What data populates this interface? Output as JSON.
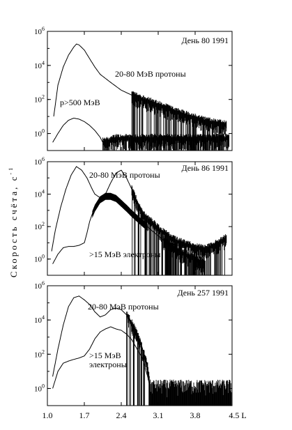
{
  "chart_data": [
    {
      "type": "line",
      "annotation": "День 80  1991",
      "xlim": [
        1.0,
        4.5
      ],
      "ylog": true,
      "ylim": [
        0.1,
        1000000
      ],
      "y_ticks": [
        {
          "value": 1,
          "base": "10",
          "exp": "0"
        },
        {
          "value": 100,
          "base": "10",
          "exp": "2"
        },
        {
          "value": 10000,
          "base": "10",
          "exp": "4"
        },
        {
          "value": 1000000,
          "base": "10",
          "exp": "6"
        }
      ],
      "series": [
        {
          "name": "20-80 МэВ протоны",
          "x": [
            1.12,
            1.2,
            1.3,
            1.4,
            1.5,
            1.55,
            1.6,
            1.7,
            1.8,
            1.9,
            2.0,
            2.2,
            2.4,
            2.6,
            2.8,
            3.0,
            3.2,
            3.4,
            3.6,
            3.8,
            4.0,
            4.2,
            4.4
          ],
          "y": [
            10,
            700,
            8000,
            40000,
            120000,
            180000,
            160000,
            80000,
            25000,
            8000,
            3000,
            1000,
            350,
            180,
            100,
            60,
            35,
            20,
            12,
            8,
            5,
            4,
            3
          ],
          "noisy_from": 2.6
        },
        {
          "name": "p>500 МэВ",
          "x": [
            1.1,
            1.2,
            1.3,
            1.4,
            1.5,
            1.6,
            1.7,
            1.8,
            1.9,
            2.0,
            2.05,
            2.1,
            2.3,
            2.6,
            3.0,
            3.4,
            3.8,
            4.2,
            4.45
          ],
          "y": [
            0.3,
            1,
            3,
            6,
            8,
            7,
            5,
            3,
            1.5,
            0.6,
            0.3,
            0.3,
            0.5,
            0.5,
            0.5,
            0.5,
            0.5,
            0.5,
            0.5
          ],
          "noisy_from": 2.05
        }
      ]
    },
    {
      "type": "line",
      "annotation": "День 86  1991",
      "xlim": [
        1.0,
        4.5
      ],
      "ylog": true,
      "ylim": [
        0.1,
        1000000
      ],
      "y_ticks": [
        {
          "value": 1,
          "base": "10",
          "exp": "0"
        },
        {
          "value": 100,
          "base": "10",
          "exp": "2"
        },
        {
          "value": 10000,
          "base": "10",
          "exp": "4"
        },
        {
          "value": 1000000,
          "base": "10",
          "exp": "6"
        }
      ],
      "series": [
        {
          "name": "20-80 МэВ протоны",
          "x": [
            1.08,
            1.15,
            1.25,
            1.35,
            1.45,
            1.55,
            1.65,
            1.75,
            1.85,
            1.9,
            2.0,
            2.1,
            2.2,
            2.3,
            2.4,
            2.5,
            2.6,
            2.7,
            2.8,
            3.0,
            3.2,
            3.4,
            3.6,
            3.8,
            4.0,
            4.2,
            4.4
          ],
          "y": [
            3,
            60,
            1500,
            20000,
            150000,
            500000,
            300000,
            100000,
            20000,
            10000,
            6000,
            10000,
            50000,
            200000,
            300000,
            100000,
            20000,
            3000,
            600,
            150,
            40,
            15,
            8,
            5,
            4,
            8,
            20
          ],
          "noisy_from": 2.6
        },
        {
          "name": ">15 МэВ электроны",
          "x": [
            1.1,
            1.2,
            1.3,
            1.4,
            1.5,
            1.6,
            1.7,
            1.75,
            1.8,
            1.85,
            1.9,
            2.0,
            2.1,
            2.2,
            2.3,
            2.4,
            2.5,
            2.6,
            2.8,
            3.0,
            3.2,
            3.4,
            3.6,
            3.8,
            4.0
          ],
          "y": [
            0.5,
            2,
            5,
            6,
            6,
            7,
            10,
            40,
            200,
            600,
            1500,
            5000,
            8000,
            8000,
            6000,
            3000,
            1500,
            700,
            180,
            50,
            15,
            5,
            2,
            1,
            0.5
          ],
          "noisy_from": 3.2,
          "band": true
        }
      ]
    },
    {
      "type": "line",
      "annotation": "День 257  1991",
      "xlim": [
        1.0,
        4.5
      ],
      "ylog": true,
      "ylim": [
        0.1,
        1000000
      ],
      "x_ticks": [
        "1.0",
        "1.7",
        "2.4",
        "3.1",
        "3.8",
        "4.5 L"
      ],
      "y_ticks": [
        {
          "value": 1,
          "base": "10",
          "exp": "0"
        },
        {
          "value": 100,
          "base": "10",
          "exp": "2"
        },
        {
          "value": 10000,
          "base": "10",
          "exp": "4"
        },
        {
          "value": 1000000,
          "base": "10",
          "exp": "6"
        }
      ],
      "series": [
        {
          "name": "20-80 МэВ протоны",
          "x": [
            1.1,
            1.2,
            1.3,
            1.4,
            1.5,
            1.6,
            1.7,
            1.8,
            1.9,
            2.0,
            2.1,
            2.2,
            2.3,
            2.4,
            2.5,
            2.6,
            2.7,
            2.8,
            2.9,
            2.95
          ],
          "y": [
            5,
            200,
            5000,
            60000,
            200000,
            250000,
            150000,
            80000,
            30000,
            15000,
            20000,
            40000,
            50000,
            40000,
            20000,
            6000,
            1500,
            200,
            20,
            1
          ],
          "noisy_from": 2.5
        },
        {
          "name": ">15 МэВ\nэлектроны",
          "x": [
            1.1,
            1.2,
            1.3,
            1.4,
            1.5,
            1.6,
            1.7,
            1.8,
            1.9,
            2.0,
            2.1,
            2.2,
            2.3,
            2.4,
            2.5,
            2.6,
            2.7,
            2.8,
            2.9,
            2.95
          ],
          "y": [
            1,
            10,
            30,
            40,
            50,
            60,
            80,
            200,
            800,
            2000,
            3000,
            4000,
            3000,
            2500,
            1500,
            700,
            200,
            60,
            5,
            1
          ],
          "noisy_from": 2.95
        }
      ],
      "noise_floor": {
        "from": 2.95,
        "to": 4.5
      }
    }
  ],
  "ylabel": {
    "text": "Скорость счёта,  с",
    "sup": "-1"
  }
}
